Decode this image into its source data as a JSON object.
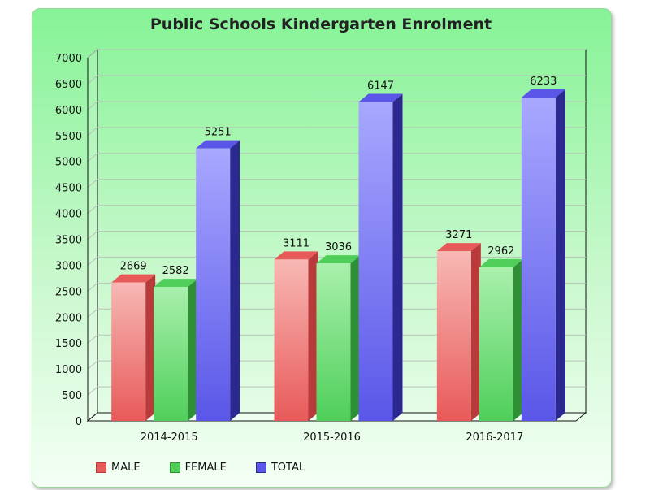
{
  "chart_data": {
    "type": "bar",
    "title": "Public Schools Kindergarten Enrolment",
    "categories": [
      "2014-2015",
      "2015-2016",
      "2016-2017"
    ],
    "series": [
      {
        "name": "MALE",
        "values": [
          2669,
          3111,
          3271
        ],
        "color": "#e85a5a",
        "dark": "#b83a3a",
        "light": "#f7b8b4"
      },
      {
        "name": "FEMALE",
        "values": [
          2582,
          3036,
          2962
        ],
        "color": "#4fcf5a",
        "dark": "#2e8f35",
        "light": "#a9f0ac"
      },
      {
        "name": "TOTAL",
        "values": [
          5251,
          6147,
          6233
        ],
        "color": "#5a56e8",
        "dark": "#2b2890",
        "light": "#a8a8ff"
      }
    ],
    "ylim": [
      0,
      7000
    ],
    "yticks": [
      0,
      500,
      1000,
      1500,
      2000,
      2500,
      3000,
      3500,
      4000,
      4500,
      5000,
      5500,
      6000,
      6500,
      7000
    ],
    "grid": true,
    "legend_position": "bottom-left"
  }
}
